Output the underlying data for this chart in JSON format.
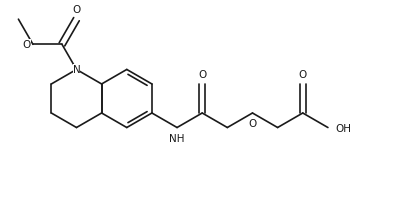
{
  "bg_color": "#ffffff",
  "line_color": "#1a1a1a",
  "line_width": 1.2,
  "font_size": 7.5,
  "fig_width": 4.07,
  "fig_height": 2.03,
  "dpi": 100,
  "xlim": [
    0,
    10
  ],
  "ylim": [
    0,
    5
  ]
}
